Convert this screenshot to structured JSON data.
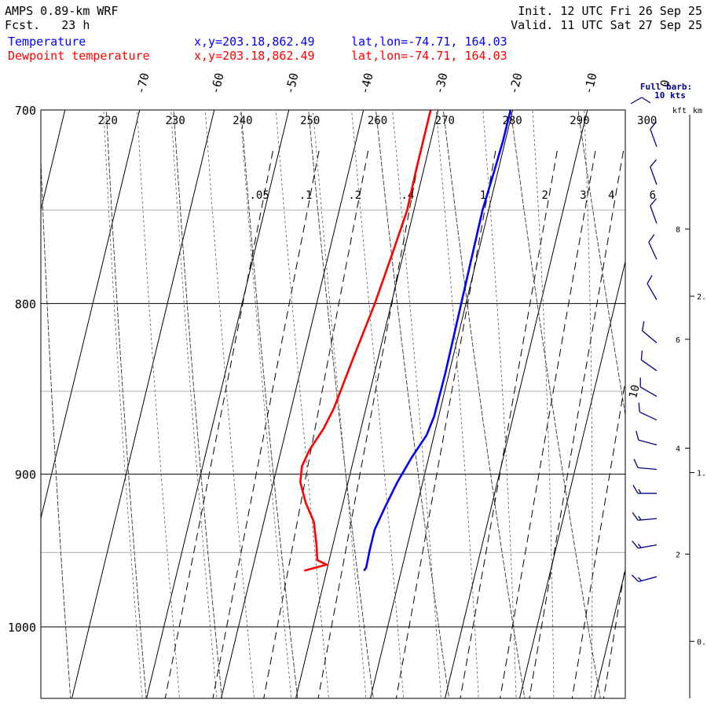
{
  "header": {
    "model": "AMPS 0.89-km WRF",
    "fcst": "Fcst.   23 h",
    "init": "Init. 12 UTC Fri 26 Sep 25",
    "valid": "Valid. 11 UTC Sat 27 Sep 25",
    "temp_label": "Temperature",
    "dew_label": "Dewpoint temperature",
    "temp_xy": "x,y=203.18,862.49",
    "dew_xy": "x,y=203.18,862.49",
    "temp_latlon": "lat,lon=-74.71, 164.03",
    "dew_latlon": "lat,lon=-74.71, 164.03"
  },
  "barb_legend": {
    "line1": "Full barb:",
    "line2": "10 kts"
  },
  "height_axis": {
    "kft_label": "kft",
    "km_label": "km"
  },
  "colors": {
    "temperature": "#0000ff",
    "dewpoint": "#ff0000",
    "barbs": "#00008b"
  },
  "chart_data": {
    "type": "line",
    "chart_kind": "skew-T log-p sounding",
    "y_scale": "log-pressure",
    "ylim": [
      1050,
      700
    ],
    "pressure_ticks": [
      700,
      800,
      900,
      1000
    ],
    "temp_ticks": [
      -70,
      -60,
      -50,
      -40,
      -30,
      -20,
      -10,
      0
    ],
    "theta_labels": [
      220,
      230,
      240,
      250,
      260,
      270,
      280,
      290,
      300
    ],
    "mixing_ratio_labels": [
      ".05",
      ".1",
      ".2",
      ".4",
      "1",
      "2",
      "3",
      "4",
      "6"
    ],
    "kft_ticks": [
      2,
      4,
      6,
      8
    ],
    "km_ticks": [
      "0.",
      "1.",
      "2."
    ],
    "series": [
      {
        "name": "Temperature",
        "color": "#0000ff",
        "points": [
          {
            "p": 962,
            "t": -25.0
          },
          {
            "p": 960,
            "t": -24.8
          },
          {
            "p": 948,
            "t": -24.9
          },
          {
            "p": 935,
            "t": -24.9
          },
          {
            "p": 920,
            "t": -24.2
          },
          {
            "p": 905,
            "t": -23.4
          },
          {
            "p": 890,
            "t": -22.3
          },
          {
            "p": 876,
            "t": -21.0
          },
          {
            "p": 865,
            "t": -20.6
          },
          {
            "p": 840,
            "t": -20.5
          },
          {
            "p": 810,
            "t": -20.6
          },
          {
            "p": 780,
            "t": -20.7
          },
          {
            "p": 750,
            "t": -20.8
          },
          {
            "p": 730,
            "t": -20.5
          },
          {
            "p": 715,
            "t": -20.3
          },
          {
            "p": 700,
            "t": -20.3
          }
        ]
      },
      {
        "name": "Dewpoint temperature",
        "color": "#ff0000",
        "points": [
          {
            "p": 962,
            "t": -33.0
          },
          {
            "p": 958,
            "t": -30.2
          },
          {
            "p": 955,
            "t": -31.6
          },
          {
            "p": 945,
            "t": -32.2
          },
          {
            "p": 930,
            "t": -33.3
          },
          {
            "p": 918,
            "t": -35.0
          },
          {
            "p": 905,
            "t": -36.4
          },
          {
            "p": 895,
            "t": -36.7
          },
          {
            "p": 885,
            "t": -36.2
          },
          {
            "p": 872,
            "t": -35.0
          },
          {
            "p": 860,
            "t": -34.3
          },
          {
            "p": 830,
            "t": -33.3
          },
          {
            "p": 800,
            "t": -32.2
          },
          {
            "p": 770,
            "t": -31.4
          },
          {
            "p": 750,
            "t": -30.9
          },
          {
            "p": 730,
            "t": -31.0
          },
          {
            "p": 700,
            "t": -31.0
          }
        ]
      }
    ],
    "wind_barbs": [
      {
        "p": 966,
        "dir": 255,
        "spd": 15
      },
      {
        "p": 945,
        "dir": 260,
        "spd": 15
      },
      {
        "p": 928,
        "dir": 265,
        "spd": 15
      },
      {
        "p": 912,
        "dir": 270,
        "spd": 15
      },
      {
        "p": 897,
        "dir": 275,
        "spd": 10
      },
      {
        "p": 882,
        "dir": 285,
        "spd": 10
      },
      {
        "p": 867,
        "dir": 295,
        "spd": 10
      },
      {
        "p": 853,
        "dir": 300,
        "spd": 10
      },
      {
        "p": 838,
        "dir": 305,
        "spd": 10
      },
      {
        "p": 822,
        "dir": 310,
        "spd": 10
      },
      {
        "p": 798,
        "dir": 330,
        "spd": 10
      },
      {
        "p": 776,
        "dir": 335,
        "spd": 10
      },
      {
        "p": 757,
        "dir": 340,
        "spd": 10
      },
      {
        "p": 737,
        "dir": 340,
        "spd": 10
      },
      {
        "p": 718,
        "dir": 340,
        "spd": 10
      }
    ],
    "isopleth_annotation": "10"
  }
}
